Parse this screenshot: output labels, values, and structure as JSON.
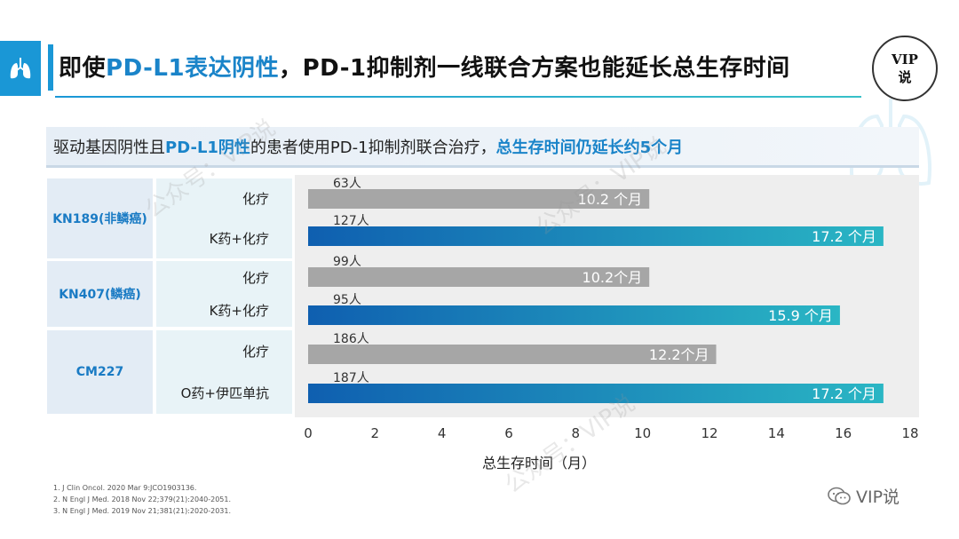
{
  "header": {
    "title_parts": [
      "即使",
      "PD-L1表达阴性",
      "，PD-1抑制剂一线联合方案也能延长总生存时间"
    ],
    "badge_line1": "VIP",
    "badge_line2": "说"
  },
  "subtitle": {
    "parts": [
      "驱动基因阴性且",
      "PD-L1阴性",
      "的患者使用PD-1抑制剂联合治疗，",
      "总生存时间仍延长约5个月"
    ]
  },
  "studies": [
    {
      "name": "KN189(非鳞癌)",
      "arms": [
        "化疗",
        "K药+化疗"
      ]
    },
    {
      "name": "KN407(鳞癌)",
      "arms": [
        "化疗",
        "K药+化疗"
      ]
    },
    {
      "name": "CM227",
      "arms": [
        "化疗",
        "O药+伊匹单抗"
      ]
    }
  ],
  "colors": {
    "accent": "#1a97d6",
    "gray_bar": "#a6a6a6",
    "blue_bar_start": "#0f5fb0",
    "blue_bar_end": "#2ab6c4"
  },
  "chart_data": {
    "type": "bar",
    "orientation": "horizontal",
    "categories": [
      "化疗",
      "K药+化疗",
      "化疗",
      "K药+化疗",
      "化疗",
      "O药+伊匹单抗"
    ],
    "groups": [
      "KN189(非鳞癌)",
      "KN189(非鳞癌)",
      "KN407(鳞癌)",
      "KN407(鳞癌)",
      "CM227",
      "CM227"
    ],
    "values": [
      10.2,
      17.2,
      10.2,
      15.9,
      12.2,
      17.2
    ],
    "value_labels": [
      "10.2 个月",
      "17.2 个月",
      "10.2个月",
      "15.9 个月",
      "12.2个月",
      "17.2 个月"
    ],
    "n_labels": [
      "63人",
      "127人",
      "99人",
      "95人",
      "186人",
      "187人"
    ],
    "bar_style": [
      "gray",
      "blue",
      "gray",
      "blue",
      "gray",
      "blue"
    ],
    "xlabel": "总生存时间（月）",
    "xlim": [
      0,
      18
    ],
    "xticks": [
      0,
      2,
      4,
      6,
      8,
      10,
      12,
      14,
      16,
      18
    ],
    "grid": false
  },
  "references": [
    "1. J Clin Oncol. 2020 Mar 9:JCO1903136.",
    "2. N Engl J Med. 2018 Nov 22;379(21):2040-2051.",
    "3. N Engl J Med. 2019 Nov 21;381(21):2020-2031."
  ],
  "footer": {
    "brand": "VIP说"
  },
  "watermark": "公众号：VIP说"
}
